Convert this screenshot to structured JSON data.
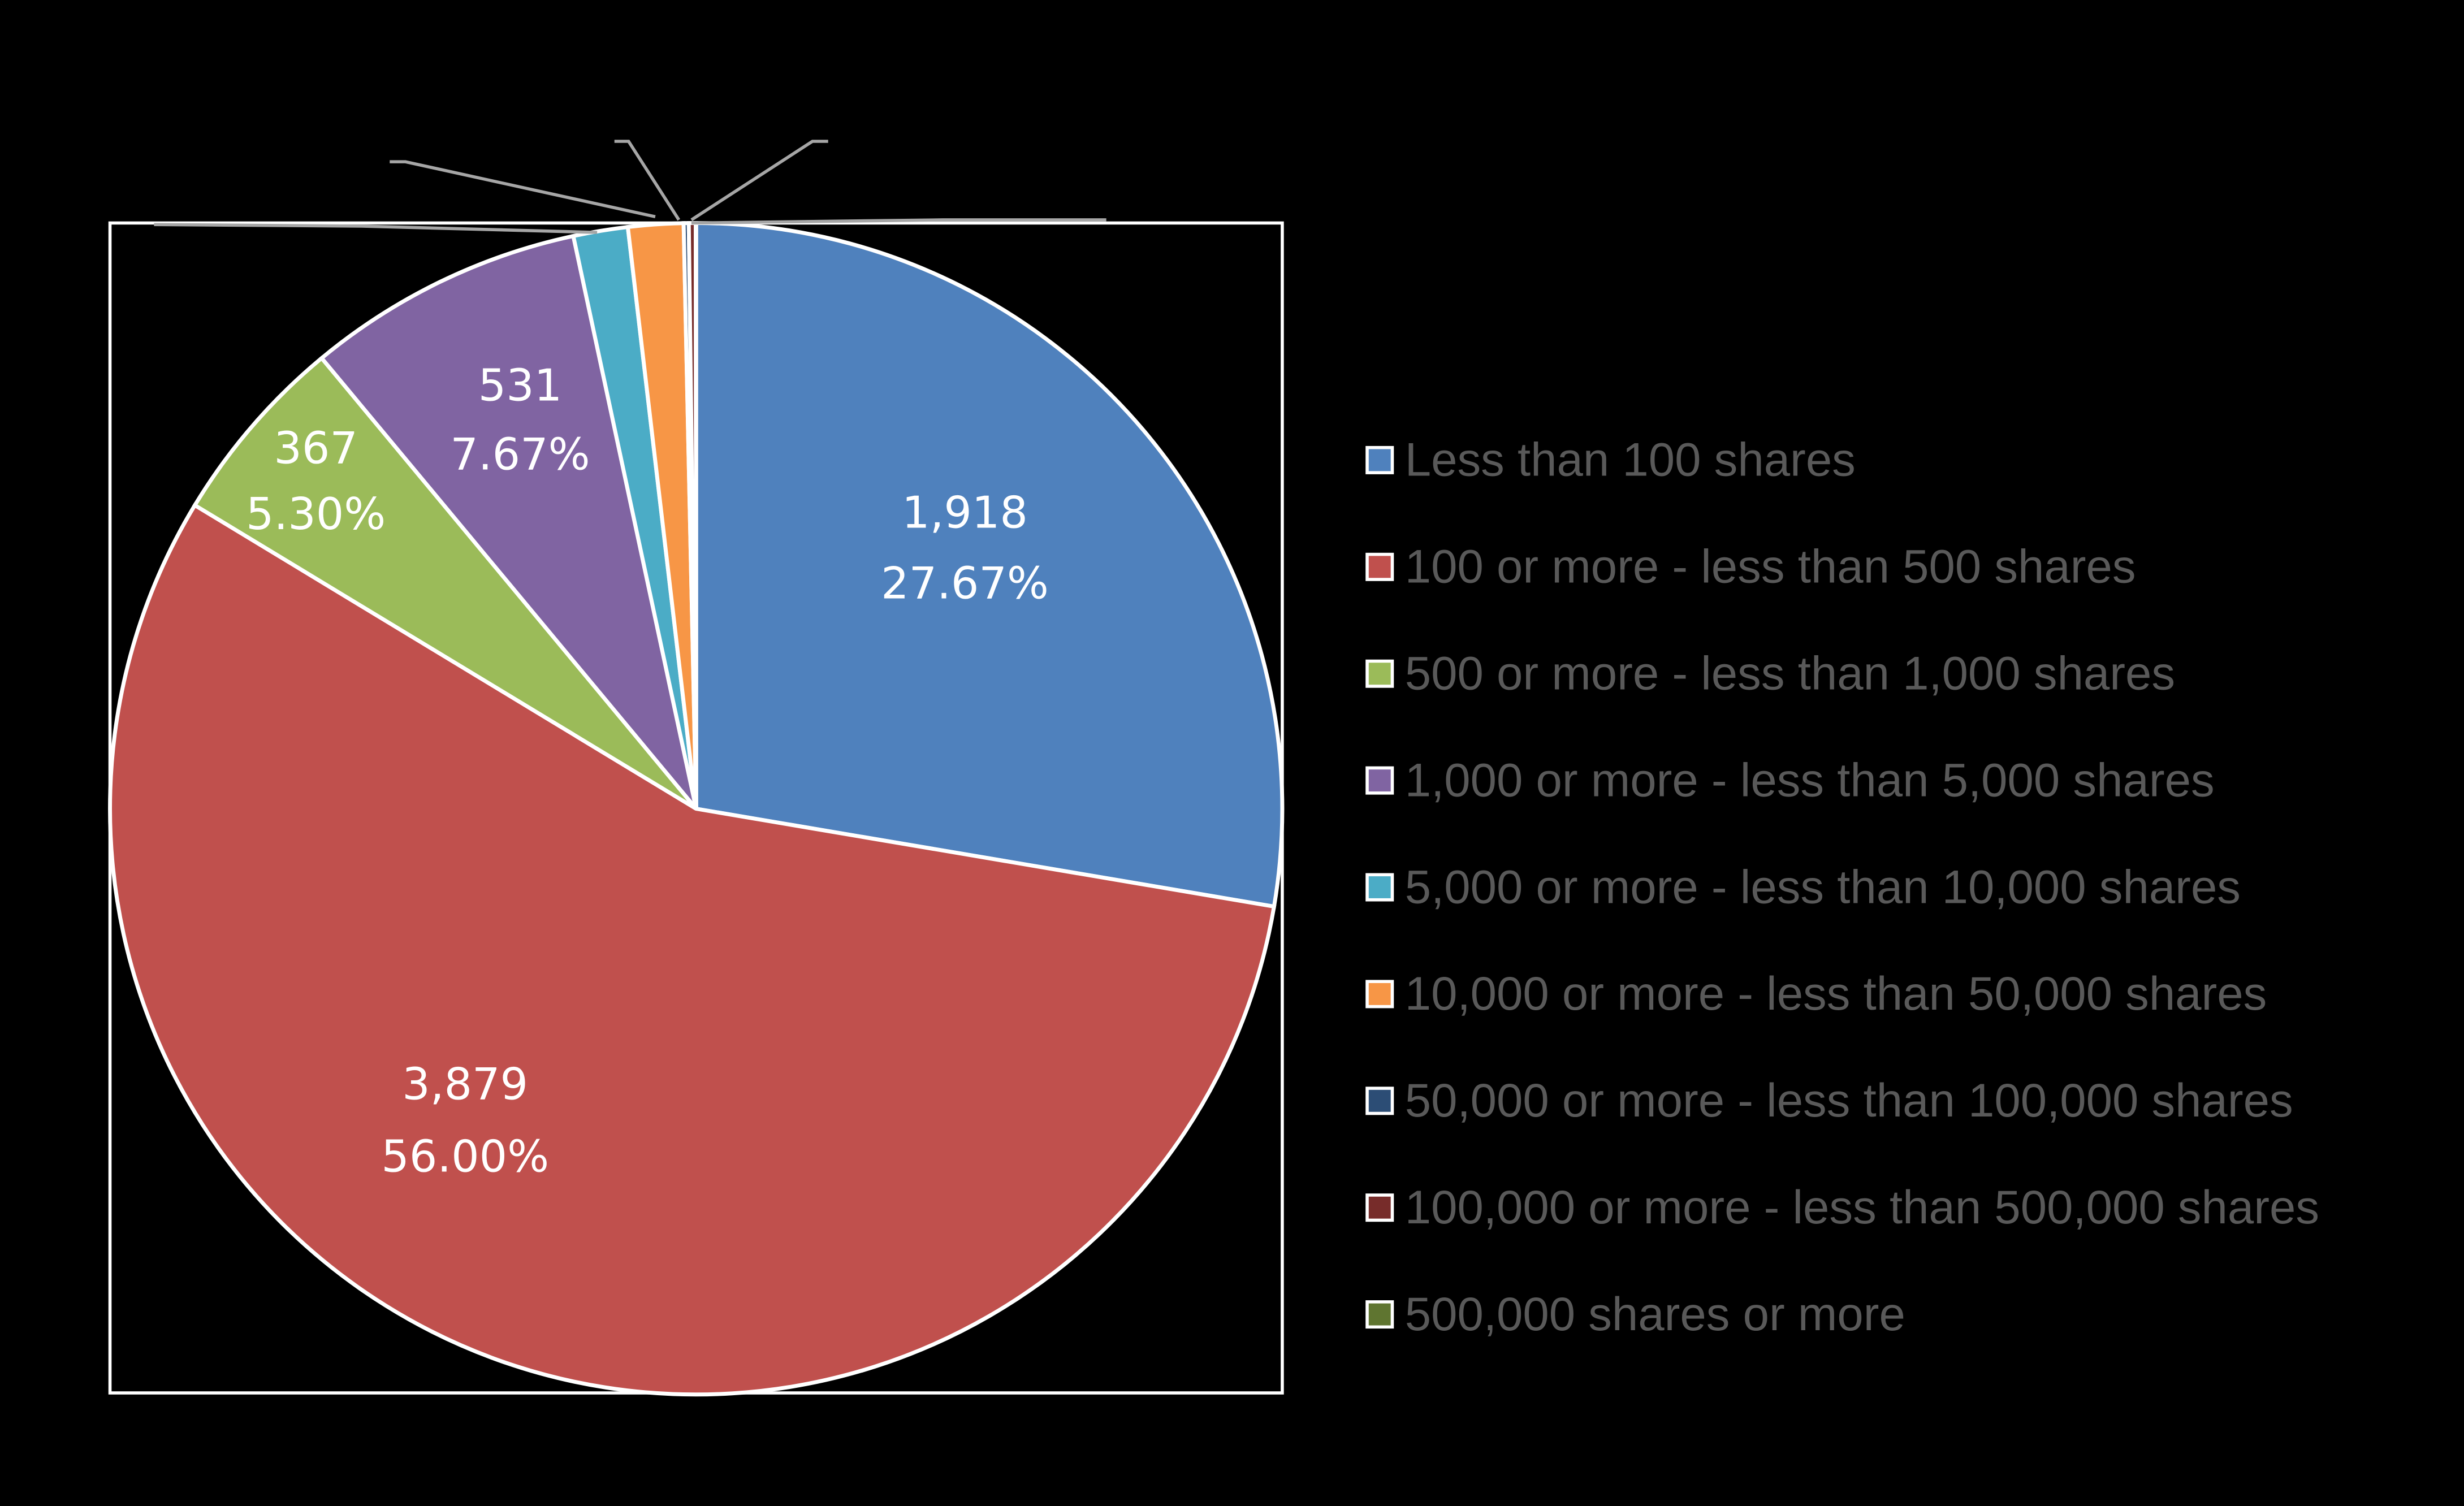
{
  "chart_data": {
    "type": "pie",
    "title": "",
    "categories": [
      "Less than 100 shares",
      "100 or more - less than 500 shares",
      "500 or more - less than 1,000 shares",
      "1,000 or more - less than 5,000 shares",
      "5,000 or more - less than 10,000 shares",
      "10,000 or more - less than 50,000 shares",
      "50,000 or more - less than 100,000 shares",
      "100,000 or more - less than 500,000 shares",
      "500,000 shares or more"
    ],
    "values": [
      1918,
      3879,
      367,
      531,
      104,
      105,
      10,
      13,
      1
    ],
    "percentages": [
      27.67,
      56.0,
      5.3,
      7.67,
      1.5,
      1.52,
      0.14,
      0.19,
      0.01
    ],
    "labels_visible": [
      true,
      true,
      true,
      true,
      false,
      false,
      false,
      false,
      false
    ],
    "colors": [
      "#4f81bd",
      "#c0504d",
      "#9bbb59",
      "#8064a2",
      "#4bacc6",
      "#f79646",
      "#2c4d75",
      "#772c2a",
      "#5f7530"
    ],
    "legend_position": "right",
    "start_angle_deg": 0,
    "direction": "clockwise"
  },
  "labels": [
    {
      "value": "1,918",
      "pct": "27.67%"
    },
    {
      "value": "3,879",
      "pct": "56.00%"
    },
    {
      "value": "367",
      "pct": "5.30%"
    },
    {
      "value": "531",
      "pct": "7.67%"
    }
  ],
  "legend": [
    {
      "label": "Less than 100 shares",
      "color": "#4f81bd"
    },
    {
      "label": "100 or more - less than 500 shares",
      "color": "#c0504d"
    },
    {
      "label": "500 or more - less than 1,000 shares",
      "color": "#9bbb59"
    },
    {
      "label": "1,000 or more - less than 5,000 shares",
      "color": "#8064a2"
    },
    {
      "label": "5,000 or more - less than 10,000 shares",
      "color": "#4bacc6"
    },
    {
      "label": "10,000 or more - less than 50,000 shares",
      "color": "#f79646"
    },
    {
      "label": "50,000 or more - less than 100,000 shares",
      "color": "#2c4d75"
    },
    {
      "label": "100,000 or more - less than 500,000 shares",
      "color": "#772c2a"
    },
    {
      "label": "500,000 shares or more",
      "color": "#5f7530"
    }
  ]
}
